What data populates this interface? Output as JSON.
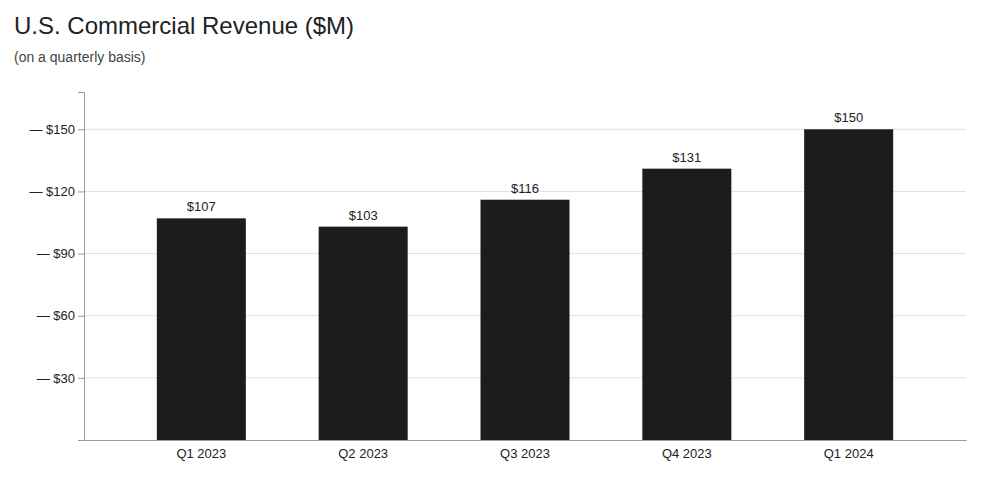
{
  "chart_data": {
    "type": "bar",
    "title": "U.S. Commercial Revenue ($M)",
    "subtitle": "(on a quarterly basis)",
    "categories": [
      "Q1 2023",
      "Q2 2023",
      "Q3 2023",
      "Q4 2023",
      "Q1 2024"
    ],
    "values": [
      107,
      103,
      116,
      131,
      150
    ],
    "value_labels": [
      "$107",
      "$103",
      "$116",
      "$131",
      "$150"
    ],
    "data_labels": true,
    "color": "#1c1c1c",
    "ylim": [
      0,
      168
    ],
    "yticks": [
      {
        "value": 30,
        "label": "— $30"
      },
      {
        "value": 60,
        "label": "— $60"
      },
      {
        "value": 90,
        "label": "— $90"
      },
      {
        "value": 120,
        "label": "— $120"
      },
      {
        "value": 150,
        "label": "— $150"
      }
    ],
    "grid": true
  }
}
